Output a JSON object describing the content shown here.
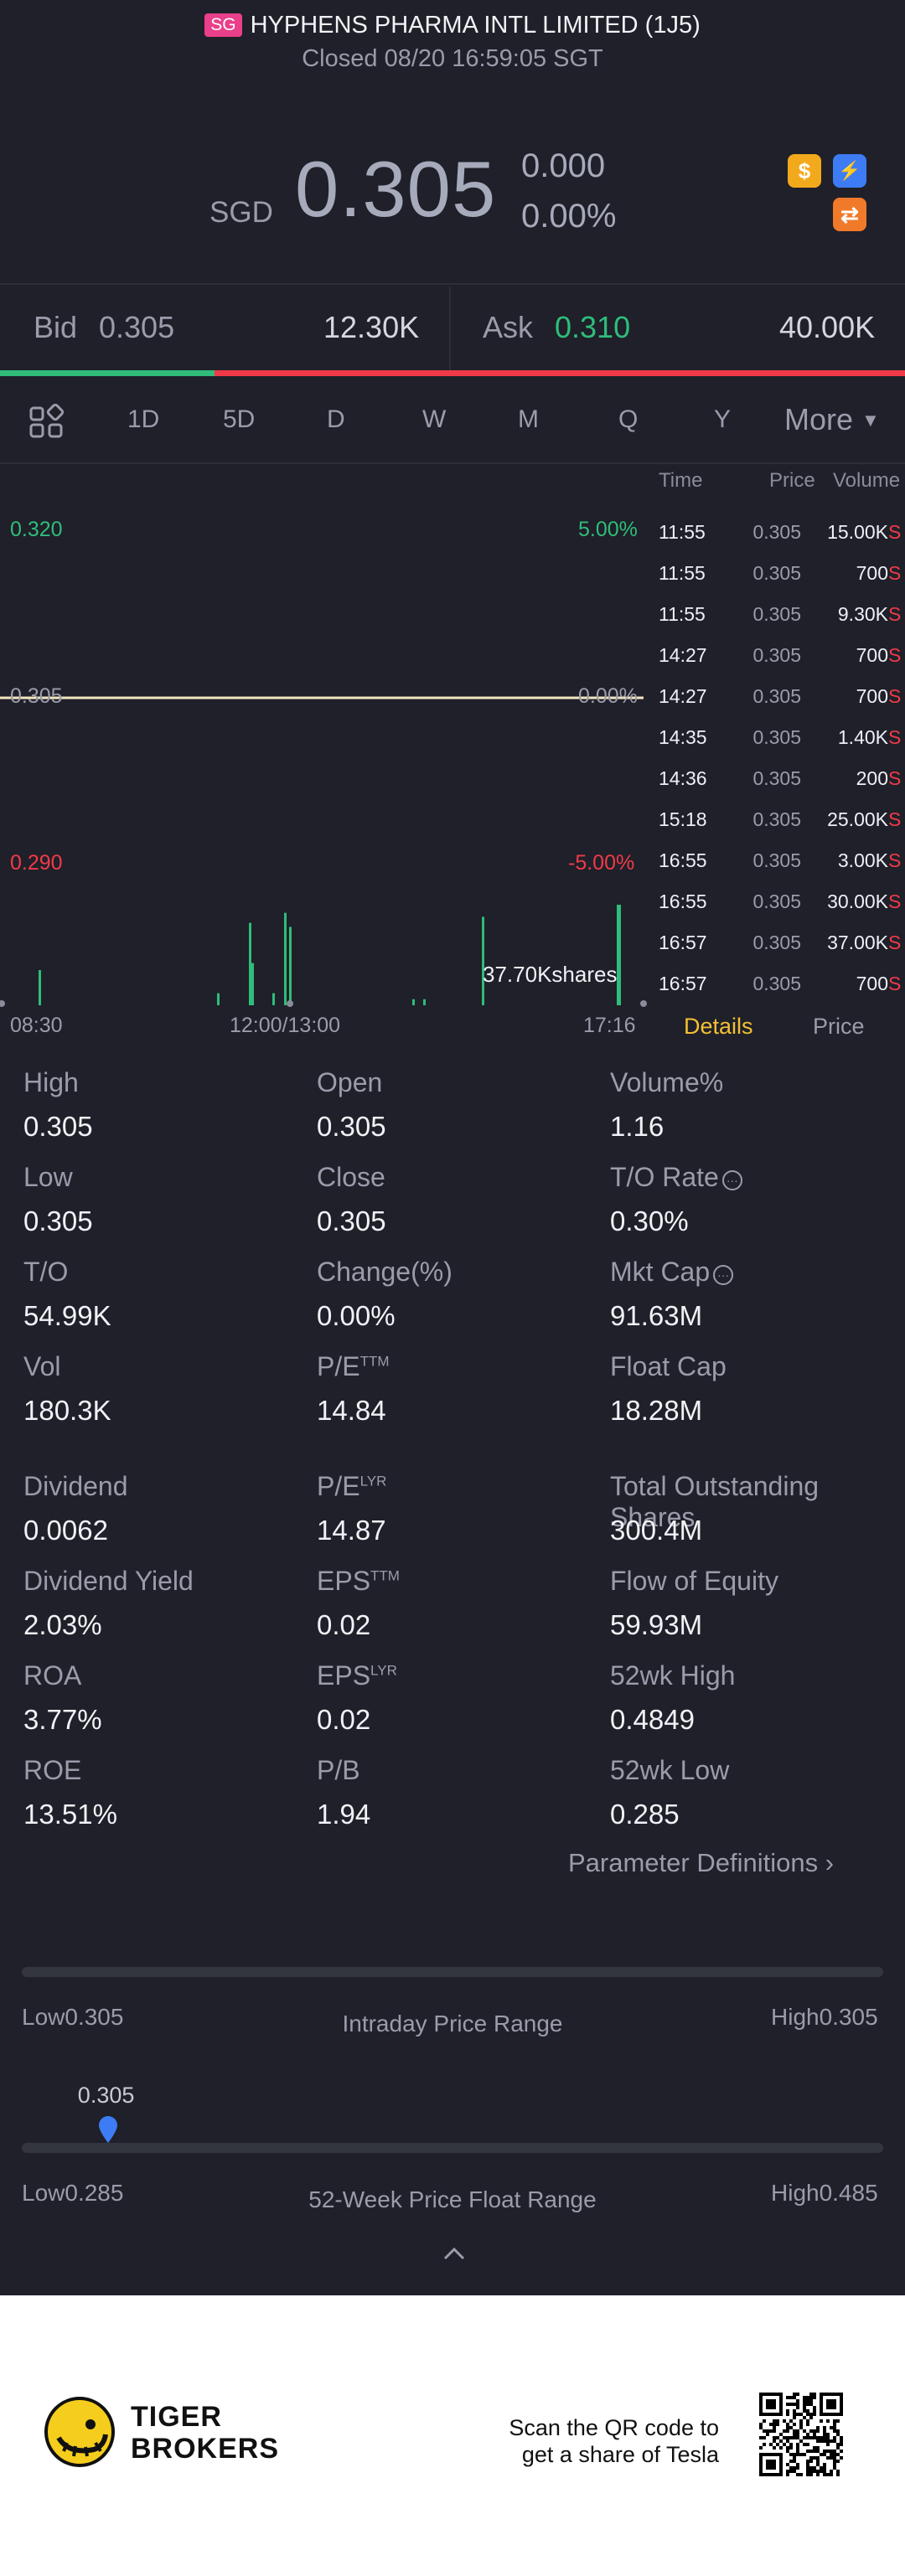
{
  "header": {
    "market_badge": "SG",
    "title": "HYPHENS PHARMA INTL LIMITED (1J5)",
    "subtitle": "Closed 08/20 16:59:05 SGT"
  },
  "quote": {
    "currency": "SGD",
    "price": "0.305",
    "change": "0.000",
    "change_pct": "0.00%"
  },
  "icons": {
    "dollar": "$",
    "flash": "⚡",
    "swap": "⇄"
  },
  "bid_ask": {
    "bid_label": "Bid",
    "bid_price": "0.305",
    "bid_size": "12.30K",
    "ask_label": "Ask",
    "ask_price": "0.310",
    "ask_size": "40.00K",
    "bid_ratio": 0.237
  },
  "tabs": [
    "1D",
    "5D",
    "D",
    "W",
    "M",
    "Q",
    "Y"
  ],
  "tab_more": "More",
  "active_tab": "1D",
  "chart": {
    "y_top": "0.320",
    "y_mid": "0.305",
    "y_bot": "0.290",
    "pct_top": "5.00%",
    "pct_mid": "0.00%",
    "pct_bot": "-5.00%",
    "x_start": "08:30",
    "x_mid": "12:00/13:00",
    "x_end": "17:16",
    "volume_label": "37.70Kshares"
  },
  "chart_data": {
    "type": "line",
    "title": "",
    "xlabel": "",
    "ylabel": "",
    "ylim": [
      0.29,
      0.32
    ],
    "x": [
      "08:30",
      "12:00/13:00",
      "17:16"
    ],
    "series": [
      {
        "values": [
          0.305,
          0.305,
          0.305
        ]
      }
    ],
    "volume_bars": [
      0.35,
      0.12,
      0.42,
      0.92,
      0.12,
      0.82,
      0.78,
      0.06,
      0.06,
      0.88,
      1.0
    ]
  },
  "ticks": {
    "headers": {
      "time": "Time",
      "price": "Price",
      "volume": "Volume"
    },
    "rows": [
      {
        "time": "11:55",
        "price": "0.305",
        "volume": "15.00K",
        "side": "S"
      },
      {
        "time": "11:55",
        "price": "0.305",
        "volume": "700",
        "side": "S"
      },
      {
        "time": "11:55",
        "price": "0.305",
        "volume": "9.30K",
        "side": "S"
      },
      {
        "time": "14:27",
        "price": "0.305",
        "volume": "700",
        "side": "S"
      },
      {
        "time": "14:27",
        "price": "0.305",
        "volume": "700",
        "side": "S"
      },
      {
        "time": "14:35",
        "price": "0.305",
        "volume": "1.40K",
        "side": "S"
      },
      {
        "time": "14:36",
        "price": "0.305",
        "volume": "200",
        "side": "S"
      },
      {
        "time": "15:18",
        "price": "0.305",
        "volume": "25.00K",
        "side": "S"
      },
      {
        "time": "16:55",
        "price": "0.305",
        "volume": "3.00K",
        "side": "S"
      },
      {
        "time": "16:55",
        "price": "0.305",
        "volume": "30.00K",
        "side": "S"
      },
      {
        "time": "16:57",
        "price": "0.305",
        "volume": "37.00K",
        "side": "S"
      },
      {
        "time": "16:57",
        "price": "0.305",
        "volume": "700",
        "side": "S"
      }
    ],
    "tab_details": "Details",
    "tab_price": "Price"
  },
  "stats": [
    {
      "label": "High",
      "value": "0.305"
    },
    {
      "label": "Open",
      "value": "0.305"
    },
    {
      "label": "Volume%",
      "value": "1.16"
    },
    {
      "label": "Low",
      "value": "0.305"
    },
    {
      "label": "Close",
      "value": "0.305"
    },
    {
      "label": "T/O Rate",
      "value": "0.30%"
    },
    {
      "label": "T/O",
      "value": "54.99K"
    },
    {
      "label": "Change(%)",
      "value": "0.00%"
    },
    {
      "label": "Mkt Cap",
      "value": "91.63M"
    },
    {
      "label": "Vol",
      "value": "180.3K"
    },
    {
      "label": "P/E",
      "sup": "TTM",
      "value": "14.84"
    },
    {
      "label": "Float Cap",
      "value": "18.28M"
    },
    {
      "label": "Dividend",
      "value": "0.0062"
    },
    {
      "label": "P/E",
      "sup": "LYR",
      "value": "14.87"
    },
    {
      "label": "Total Outstanding Shares",
      "value": "300.4M"
    },
    {
      "label": "Dividend Yield",
      "value": "2.03%"
    },
    {
      "label": "EPS",
      "sup": "TTM",
      "value": "0.02"
    },
    {
      "label": "Flow of Equity",
      "value": "59.93M"
    },
    {
      "label": "ROA",
      "value": "3.77%"
    },
    {
      "label": "EPS",
      "sup": "LYR",
      "value": "0.02"
    },
    {
      "label": "52wk High",
      "value": "0.4849"
    },
    {
      "label": "ROE",
      "value": "13.51%"
    },
    {
      "label": "P/B",
      "value": "1.94"
    },
    {
      "label": "52wk Low",
      "value": "0.285"
    }
  ],
  "param_defs": "Parameter Definitions",
  "intraday": {
    "low": "Low0.305",
    "title": "Intraday Price Range",
    "high": "High0.305"
  },
  "week52": {
    "marker_value": "0.305",
    "marker_fraction": 0.1,
    "low": "Low0.285",
    "title": "52-Week Price Float Range",
    "high": "High0.485"
  },
  "footer": {
    "brand_line1": "TIGER",
    "brand_line2": "BROKERS",
    "cta_line1": "Scan the QR code to",
    "cta_line2": "get a share of Tesla"
  },
  "colors": {
    "background": "#1f2029",
    "up": "#2fbd7a",
    "down": "#f03a48",
    "accent": "#f3c033",
    "price_line": "#f3e6c0",
    "marker": "#3d7cf5"
  }
}
